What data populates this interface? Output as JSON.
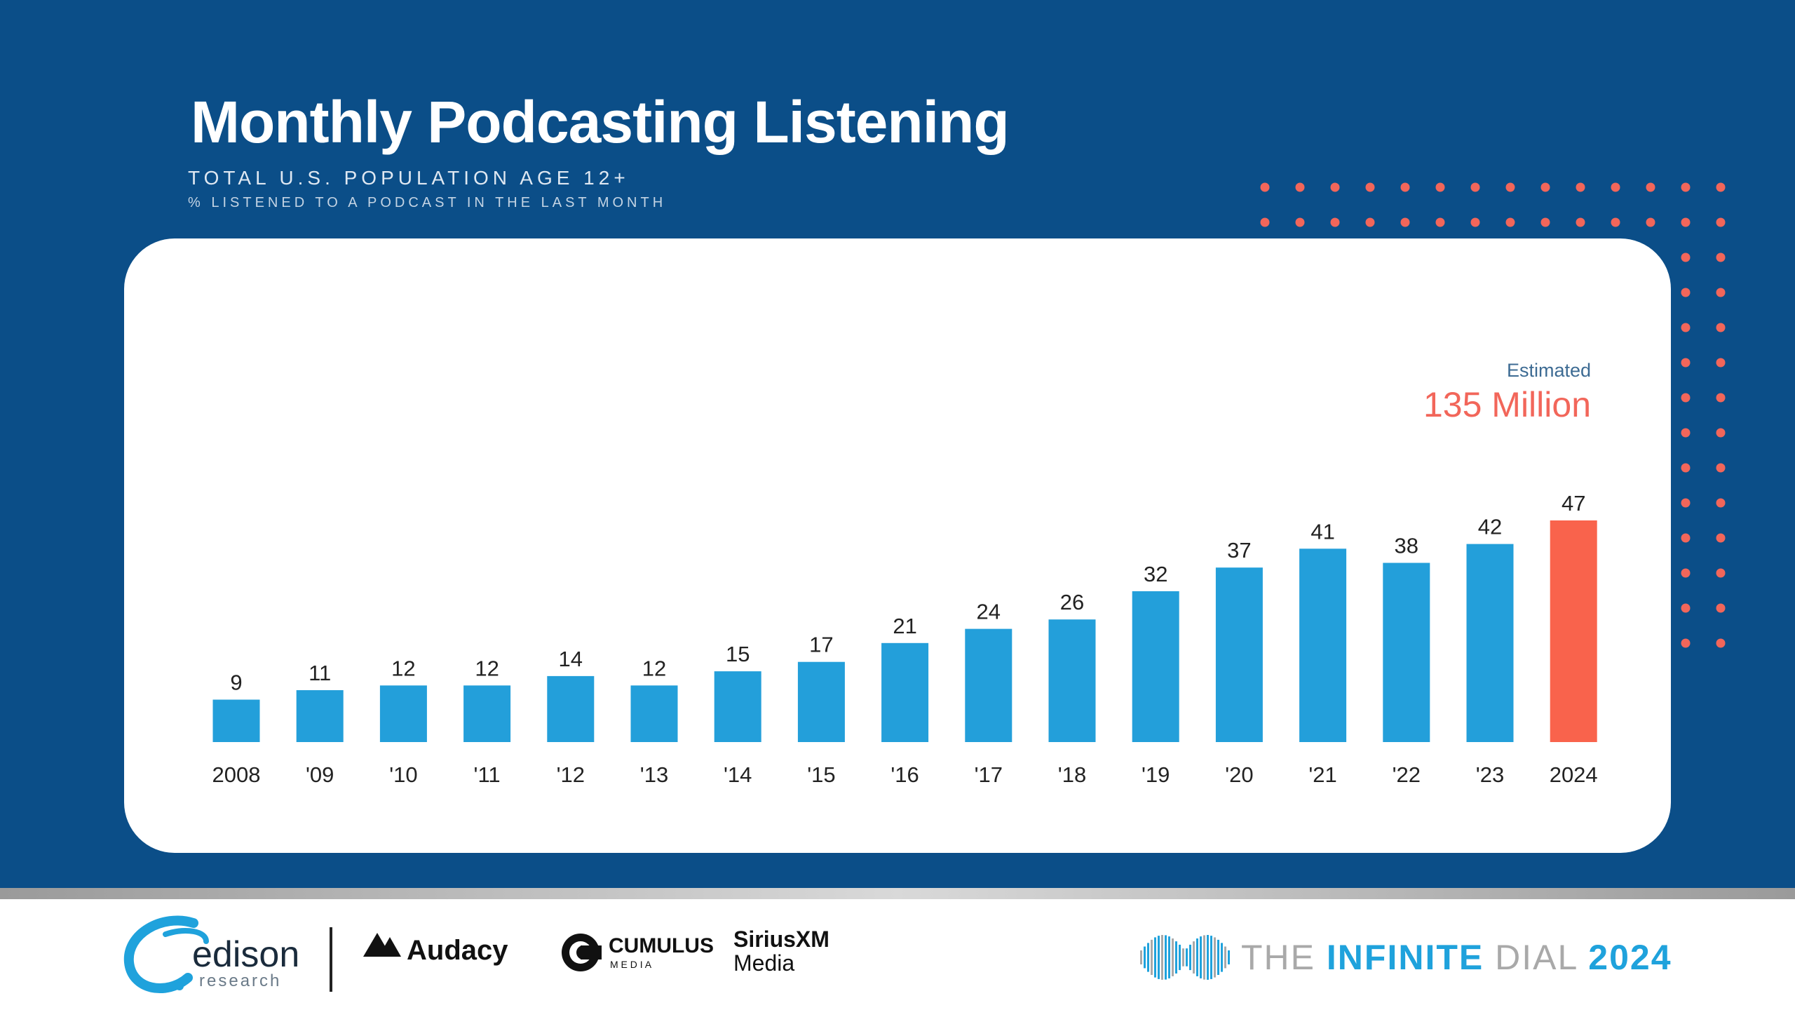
{
  "header": {
    "title": "Monthly Podcasting Listening",
    "subtitle1": "TOTAL U.S. POPULATION AGE 12+",
    "subtitle2": "% LISTENED TO A PODCAST IN THE LAST MONTH"
  },
  "estimate": {
    "label": "Estimated",
    "value": "135 Million"
  },
  "chart_data": {
    "type": "bar",
    "categories": [
      "2008",
      "'09",
      "'10",
      "'11",
      "'12",
      "'13",
      "'14",
      "'15",
      "'16",
      "'17",
      "'18",
      "'19",
      "'20",
      "'21",
      "'22",
      "'23",
      "2024"
    ],
    "values": [
      9,
      11,
      12,
      12,
      14,
      12,
      15,
      17,
      21,
      24,
      26,
      32,
      37,
      41,
      38,
      42,
      47
    ],
    "title": "Monthly Podcasting Listening",
    "xlabel": "",
    "ylabel": "",
    "ylim": [
      0,
      47
    ],
    "grid": false,
    "legend": "none",
    "colors": {
      "bar": "#239fda",
      "highlight": "#f9634c",
      "highlight_category": "2024"
    }
  },
  "footer": {
    "logos": {
      "edison_name": "edison",
      "edison_sub": "research",
      "audacy": "Audacy",
      "cumulus": "CUMULUS",
      "cumulus_sub": "M E D I A",
      "siriusxm": "SiriusXM",
      "siriusxm_sub": "Media",
      "infinite_the": "THE ",
      "infinite_word": "INFINITE",
      "infinite_dial": " DIAL",
      "infinite_year": "2024"
    }
  },
  "colors": {
    "background": "#0b4e88",
    "accent": "#f2665a",
    "bar": "#239fda"
  }
}
